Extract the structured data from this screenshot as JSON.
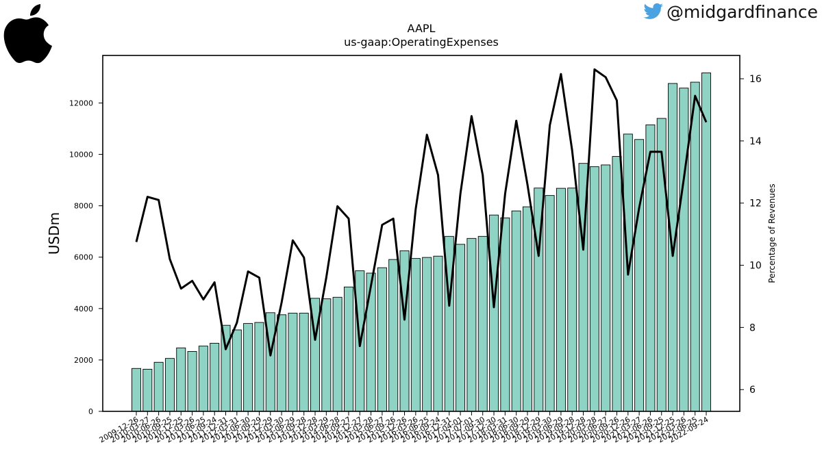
{
  "header": {
    "handle": "@midgardfinance",
    "logo_icon": "apple-logo-icon",
    "social_icon": "twitter-bird-icon"
  },
  "chart_data": {
    "type": "bar",
    "title": "AAPL",
    "subtitle": "us-gaap:OperatingExpenses",
    "ylabel": "USDm",
    "y2label": "Percentage of Revenues",
    "ylim": [
      0,
      13850
    ],
    "y2lim": [
      5.3,
      16.75
    ],
    "yticks": [
      0,
      2000,
      4000,
      6000,
      8000,
      10000,
      12000
    ],
    "y2ticks": [
      6,
      8,
      10,
      12,
      14,
      16
    ],
    "bar_color": "#8fd3c5",
    "line_color": "#000000",
    "categories": [
      "2009-12-26",
      "2010-03-27",
      "2010-06-26",
      "2010-09-25",
      "2010-12-25",
      "2011-03-26",
      "2011-06-25",
      "2011-09-24",
      "2011-12-31",
      "2012-03-31",
      "2012-06-30",
      "2012-09-29",
      "2012-12-29",
      "2013-03-30",
      "2013-06-29",
      "2013-09-28",
      "2013-12-28",
      "2014-03-29",
      "2014-06-28",
      "2014-09-27",
      "2014-12-27",
      "2015-03-28",
      "2015-06-27",
      "2015-09-26",
      "2015-12-26",
      "2016-03-26",
      "2016-06-25",
      "2016-09-24",
      "2016-12-31",
      "2017-04-01",
      "2017-07-01",
      "2017-09-30",
      "2017-12-30",
      "2018-03-31",
      "2018-06-30",
      "2018-09-29",
      "2018-12-29",
      "2019-03-30",
      "2019-06-29",
      "2019-09-28",
      "2019-12-28",
      "2020-03-28",
      "2020-06-27",
      "2020-09-26",
      "2020-12-26",
      "2021-03-27",
      "2021-06-26",
      "2021-09-25",
      "2021-12-25",
      "2022-03-26",
      "2022-06-25",
      "2022-09-24"
    ],
    "series": [
      {
        "kind": "bar",
        "axis": "left",
        "values": [
          1670,
          1640,
          1910,
          2060,
          2470,
          2330,
          2540,
          2650,
          3350,
          3170,
          3420,
          3460,
          3840,
          3760,
          3820,
          3820,
          4400,
          4380,
          4440,
          4840,
          5470,
          5380,
          5590,
          5910,
          6250,
          5950,
          5990,
          6040,
          6810,
          6500,
          6730,
          6810,
          7640,
          7530,
          7800,
          7960,
          8690,
          8400,
          8680,
          8690,
          9650,
          9520,
          9590,
          9920,
          10790,
          10580,
          11150,
          11400,
          12760,
          12580,
          12810,
          13170
        ]
      },
      {
        "kind": "line",
        "axis": "right",
        "values": [
          10.75,
          12.2,
          12.1,
          10.2,
          9.25,
          9.5,
          8.9,
          9.45,
          7.3,
          8.15,
          9.8,
          9.6,
          7.1,
          8.8,
          10.8,
          10.25,
          7.6,
          9.6,
          11.9,
          11.5,
          7.4,
          9.35,
          11.3,
          11.5,
          8.25,
          11.8,
          14.2,
          12.9,
          8.7,
          12.3,
          14.8,
          12.9,
          8.65,
          12.3,
          14.65,
          12.6,
          10.3,
          14.5,
          16.15,
          13.7,
          10.5,
          16.3,
          16.05,
          15.3,
          9.7,
          11.85,
          13.65,
          13.65,
          10.3,
          12.8,
          15.45,
          14.6
        ]
      }
    ]
  }
}
